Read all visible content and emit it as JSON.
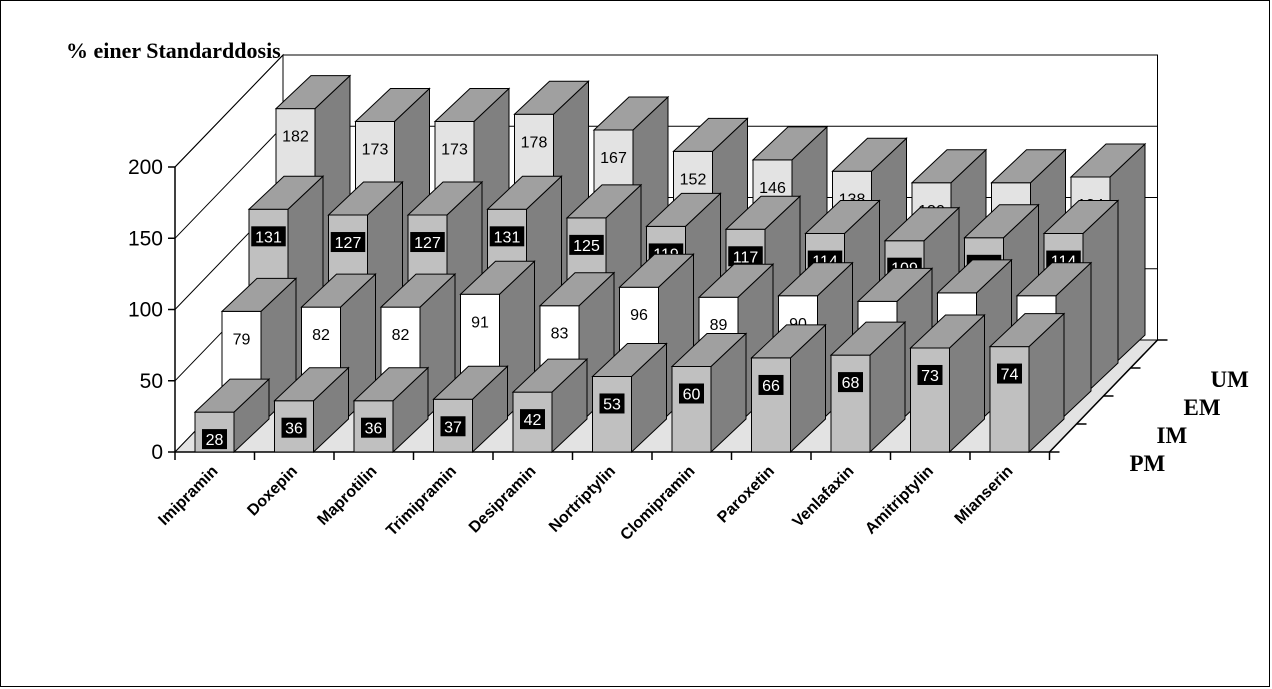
{
  "chart_data": {
    "type": "bar",
    "title": "% einer Standarddosis",
    "xlabel": "",
    "ylabel": "",
    "ylim": [
      0,
      200
    ],
    "yticks": [
      0,
      50,
      100,
      150,
      200
    ],
    "grid": true,
    "legend": "right",
    "categories": [
      "Imipramin",
      "Doxepin",
      "Maprotilin",
      "Trimipramin",
      "Desipramin",
      "Nortriptylin",
      "Clomipramin",
      "Paroxetin",
      "Venlafaxin",
      "Amitriptylin",
      "Mianserin"
    ],
    "series": [
      {
        "name": "PM",
        "values": [
          28,
          36,
          36,
          37,
          42,
          53,
          60,
          66,
          68,
          73,
          74
        ]
      },
      {
        "name": "IM",
        "values": [
          79,
          82,
          82,
          91,
          83,
          96,
          89,
          90,
          86,
          92,
          90
        ]
      },
      {
        "name": "EM",
        "values": [
          131,
          127,
          127,
          131,
          125,
          119,
          117,
          114,
          109,
          111,
          114
        ]
      },
      {
        "name": "UM",
        "values": [
          182,
          173,
          173,
          178,
          167,
          152,
          146,
          138,
          130,
          130,
          134
        ]
      }
    ]
  },
  "colors": {
    "PM": "#c0c0c0",
    "IM": "#ffffff",
    "EM": "#c0c0c0",
    "UM": "#e3e3e3",
    "bar_side": "#808080",
    "bar_top": "#a0a0a0",
    "floor": "#e3e3e3",
    "dark_label": "#000000"
  }
}
